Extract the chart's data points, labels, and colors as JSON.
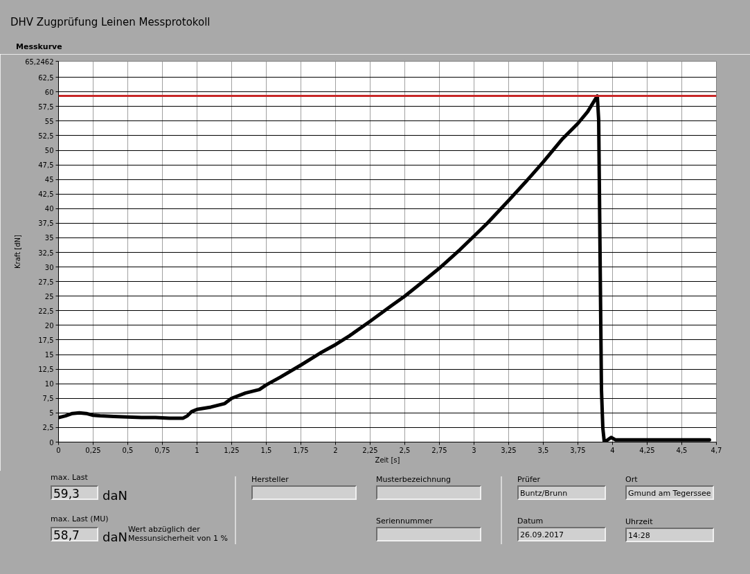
{
  "chart_data": {
    "type": "line",
    "title": "DHV Zugprüfung Leinen Messprotokoll",
    "subtitle": "Messkurve",
    "xlabel": "Zeit [s]",
    "ylabel": "Kraft [dN]",
    "x": [
      0,
      0.05,
      0.1,
      0.15,
      0.2,
      0.25,
      0.3,
      0.4,
      0.5,
      0.6,
      0.7,
      0.8,
      0.9,
      0.93,
      0.96,
      1.0,
      1.1,
      1.2,
      1.25,
      1.35,
      1.45,
      1.5,
      1.6,
      1.75,
      1.9,
      2.0,
      2.1,
      2.25,
      2.4,
      2.5,
      2.6,
      2.75,
      2.9,
      3.0,
      3.1,
      3.25,
      3.4,
      3.5,
      3.64,
      3.75,
      3.82,
      3.89,
      3.9,
      3.92,
      3.93,
      3.94,
      3.96,
      3.99,
      4.02,
      4.25,
      4.5,
      4.7
    ],
    "series": [
      {
        "color": "#000000",
        "values": [
          4.2,
          4.5,
          4.9,
          5.0,
          4.9,
          4.6,
          4.5,
          4.4,
          4.3,
          4.2,
          4.2,
          4.1,
          4.1,
          4.5,
          5.2,
          5.6,
          6.0,
          6.6,
          7.5,
          8.4,
          9.0,
          9.8,
          11.1,
          13.2,
          15.4,
          16.7,
          18.2,
          20.7,
          23.3,
          25.0,
          26.9,
          29.8,
          33.0,
          35.3,
          37.6,
          41.4,
          45.3,
          48.0,
          52.0,
          54.6,
          56.6,
          59.3,
          55.2,
          9.0,
          2.4,
          0.1,
          0.3,
          0.8,
          0.4,
          0.4,
          0.4,
          0.4
        ]
      }
    ],
    "xlim": [
      0,
      4.75
    ],
    "ylim": [
      0,
      65.2462
    ],
    "xticks": [
      0,
      {
        "value": 0.25,
        "label": "0,25"
      },
      {
        "value": 0.5,
        "label": "0,5"
      },
      {
        "value": 0.75,
        "label": "0,75"
      },
      1,
      {
        "value": 1.25,
        "label": "1,25"
      },
      {
        "value": 1.5,
        "label": "1,5"
      },
      {
        "value": 1.75,
        "label": "1,75"
      },
      2,
      {
        "value": 2.25,
        "label": "2,25"
      },
      {
        "value": 2.5,
        "label": "2,5"
      },
      {
        "value": 2.75,
        "label": "2,75"
      },
      3,
      {
        "value": 3.25,
        "label": "3,25"
      },
      {
        "value": 3.5,
        "label": "3,5"
      },
      {
        "value": 3.75,
        "label": "3,75"
      },
      4,
      {
        "value": 4.25,
        "label": "4,25"
      },
      {
        "value": 4.5,
        "label": "4,5"
      },
      {
        "value": 4.75,
        "label": "4,7"
      }
    ],
    "yticks": [
      0,
      {
        "value": 2.5,
        "label": "2,5"
      },
      5,
      {
        "value": 7.5,
        "label": "7,5"
      },
      10,
      {
        "value": 12.5,
        "label": "12,5"
      },
      15,
      {
        "value": 17.5,
        "label": "17,5"
      },
      20,
      {
        "value": 22.5,
        "label": "22,5"
      },
      25,
      {
        "value": 27.5,
        "label": "27,5"
      },
      30,
      {
        "value": 32.5,
        "label": "32,5"
      },
      35,
      {
        "value": 37.5,
        "label": "37,5"
      },
      40,
      {
        "value": 42.5,
        "label": "42,5"
      },
      45,
      {
        "value": 47.5,
        "label": "47,5"
      },
      50,
      {
        "value": 52.5,
        "label": "52,5"
      },
      55,
      {
        "value": 57.5,
        "label": "57,5"
      },
      60,
      {
        "value": 62.5,
        "label": "62,5"
      },
      {
        "value": 65.2462,
        "label": "65,2462"
      }
    ],
    "grid": true,
    "line_style": "solid",
    "ref_lines": [
      {
        "axis": "y",
        "value": 59.3,
        "color": "#c82828"
      }
    ],
    "annotations": [
      "max. Last",
      "59,3",
      "daN",
      "max. Last (MU)",
      "58,7",
      "daN",
      "Wert abzüglich der Messunsicherheit von 1 %",
      "Hersteller",
      "Musterbezeichnung",
      "Seriennummer",
      "Prüfer",
      "Buntz/Brunn",
      "Datum",
      "26.09.2017",
      "Ort",
      "Gmund am Tegerssee",
      "Uhrzeit",
      "14:28"
    ]
  }
}
